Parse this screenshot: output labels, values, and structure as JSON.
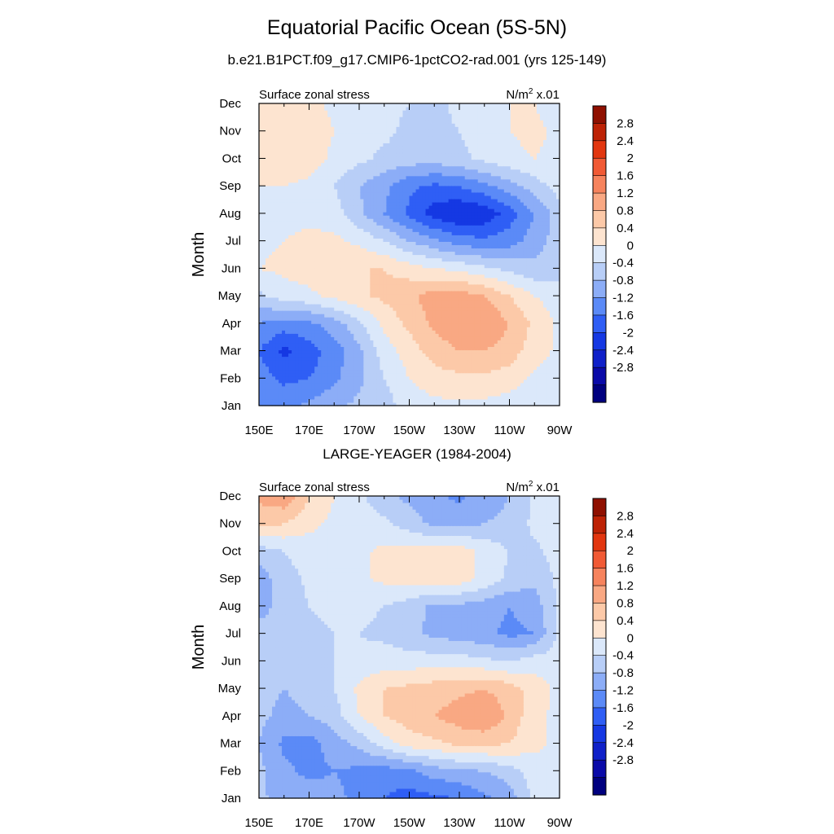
{
  "header": {
    "title": "Equatorial Pacific Ocean (5S-5N)",
    "subtitle": "b.e21.B1PCT.f09_g17.CMIP6-1pctCO2-rad.001 (yrs 125-149)",
    "panel2_title": "LARGE-YEAGER (1984-2004)"
  },
  "colors": {
    "levels": [
      "#00007f",
      "#0a0aa8",
      "#0f20c9",
      "#1538e3",
      "#2f5ef5",
      "#5b8af7",
      "#8cadf7",
      "#b8cef7",
      "#dbe8fa",
      "#fde4d0",
      "#fcc9a8",
      "#f9a883",
      "#f6835d",
      "#f15a35",
      "#e2360f",
      "#bd2205",
      "#8f1000"
    ],
    "thresholds": [
      -2.8,
      -2.4,
      -2.0,
      -1.6,
      -1.2,
      -0.8,
      -0.4,
      0,
      0.4,
      0.8,
      1.2,
      1.6,
      2.0,
      2.4,
      2.8
    ]
  },
  "chart_data": [
    {
      "type": "heatmap",
      "title": "",
      "left_string": "Surface zonal stress",
      "right_string_base": "N/m",
      "right_string_exp": "2",
      "right_string_tail": " x.01",
      "xlabel": "",
      "ylabel": "Month",
      "x_ticks": [
        "150E",
        "170E",
        "170W",
        "150W",
        "130W",
        "110W",
        "90W"
      ],
      "x_values": [
        150,
        170,
        190,
        210,
        230,
        250,
        270
      ],
      "xlim": [
        150,
        270
      ],
      "y_ticks": [
        "Jan",
        "Feb",
        "Mar",
        "Apr",
        "May",
        "Jun",
        "Jul",
        "Aug",
        "Sep",
        "Oct",
        "Nov",
        "Dec"
      ],
      "ylim": [
        1,
        12
      ],
      "colorbar_labels": [
        "2.8",
        "2.4",
        "2",
        "1.6",
        "1.2",
        "0.8",
        "0.4",
        "0",
        "-0.4",
        "-0.8",
        "-1.2",
        "-1.6",
        "-2",
        "-2.4",
        "-2.8"
      ],
      "field": {
        "x": [
          150,
          160,
          170,
          180,
          190,
          200,
          210,
          220,
          230,
          240,
          250,
          260,
          270
        ],
        "y": [
          1,
          2,
          3,
          4,
          5,
          6,
          7,
          8,
          9,
          10,
          11,
          12
        ],
        "z": [
          [
            -0.9,
            -0.9,
            -0.7,
            -0.5,
            -0.3,
            -0.2,
            0.2,
            0.3,
            0.3,
            0.3,
            0.2,
            0.1,
            0.1
          ],
          [
            -1.0,
            -1.3,
            -1.2,
            -0.9,
            -0.5,
            0.0,
            0.4,
            0.6,
            0.7,
            0.7,
            0.6,
            0.3,
            0.2
          ],
          [
            -1.2,
            -1.7,
            -1.4,
            -1.0,
            -0.5,
            0.2,
            0.6,
            1.0,
            1.2,
            1.2,
            1.0,
            0.6,
            0.3
          ],
          [
            -0.8,
            -1.0,
            -0.9,
            -0.6,
            -0.1,
            0.5,
            0.9,
            1.3,
            1.5,
            1.6,
            1.2,
            0.7,
            0.3
          ],
          [
            -0.1,
            0.2,
            0.3,
            0.5,
            0.7,
            0.9,
            1.1,
            1.4,
            1.4,
            1.2,
            0.8,
            0.4,
            0.2
          ],
          [
            0.4,
            0.5,
            0.6,
            0.8,
            0.8,
            0.8,
            0.6,
            0.4,
            0.3,
            0.1,
            -0.1,
            -0.3,
            -0.2
          ],
          [
            0.3,
            0.4,
            0.5,
            0.5,
            0.3,
            0.0,
            -0.4,
            -0.7,
            -1.0,
            -1.1,
            -1.0,
            -0.6,
            -0.2
          ],
          [
            0.2,
            0.3,
            0.3,
            0.2,
            -0.3,
            -0.8,
            -1.3,
            -1.8,
            -2.0,
            -1.9,
            -1.4,
            -0.8,
            -0.2
          ],
          [
            0.4,
            0.4,
            0.3,
            0.0,
            -0.4,
            -0.7,
            -1.1,
            -1.3,
            -1.2,
            -0.9,
            -0.6,
            -0.2,
            0.2
          ],
          [
            0.6,
            0.7,
            0.6,
            0.3,
            0.1,
            -0.1,
            -0.2,
            -0.2,
            -0.1,
            0.1,
            0.3,
            0.4,
            0.3
          ],
          [
            0.7,
            0.8,
            0.7,
            0.4,
            0.2,
            0.1,
            -0.1,
            -0.1,
            0.0,
            0.2,
            0.4,
            0.5,
            0.3
          ],
          [
            0.5,
            0.6,
            0.5,
            0.3,
            0.2,
            0.1,
            0.0,
            -0.1,
            0.1,
            0.3,
            0.4,
            0.4,
            0.2
          ]
        ]
      }
    },
    {
      "type": "heatmap",
      "title": "LARGE-YEAGER (1984-2004)",
      "left_string": "Surface zonal stress",
      "right_string_base": "N/m",
      "right_string_exp": "2",
      "right_string_tail": " x.01",
      "xlabel": "",
      "ylabel": "Month",
      "x_ticks": [
        "150E",
        "170E",
        "170W",
        "150W",
        "130W",
        "110W",
        "90W"
      ],
      "x_values": [
        150,
        170,
        190,
        210,
        230,
        250,
        270
      ],
      "xlim": [
        150,
        270
      ],
      "y_ticks": [
        "Jan",
        "Feb",
        "Mar",
        "Apr",
        "May",
        "Jun",
        "Jul",
        "Aug",
        "Sep",
        "Oct",
        "Nov",
        "Dec"
      ],
      "ylim": [
        1,
        12
      ],
      "colorbar_labels": [
        "2.8",
        "2.4",
        "2",
        "1.6",
        "1.2",
        "0.8",
        "0.4",
        "0",
        "-0.4",
        "-0.8",
        "-1.2",
        "-1.6",
        "-2",
        "-2.4",
        "-2.8"
      ],
      "field": {
        "x": [
          150,
          160,
          170,
          180,
          190,
          200,
          210,
          220,
          230,
          240,
          250,
          260,
          270
        ],
        "y": [
          1,
          2,
          3,
          4,
          5,
          6,
          7,
          8,
          9,
          10,
          11,
          12
        ],
        "z": [
          [
            -0.3,
            -0.6,
            -0.6,
            -0.7,
            -0.9,
            -1.2,
            -1.4,
            -1.3,
            -1.2,
            -0.9,
            -0.6,
            0.1,
            0.2
          ],
          [
            -0.3,
            -0.7,
            -0.9,
            -0.8,
            -0.9,
            -1.0,
            -0.9,
            -0.6,
            -0.5,
            -0.4,
            -0.2,
            0.2,
            0.3
          ],
          [
            -0.4,
            -0.9,
            -1.0,
            -0.6,
            -0.3,
            0.2,
            0.6,
            0.7,
            0.9,
            0.9,
            0.8,
            0.5,
            0.3
          ],
          [
            -0.3,
            -0.5,
            -0.4,
            -0.2,
            0.4,
            0.8,
            1.0,
            1.2,
            1.4,
            1.6,
            1.1,
            0.5,
            0.3
          ],
          [
            -0.3,
            -0.4,
            -0.3,
            0.0,
            0.5,
            0.8,
            0.9,
            1.0,
            1.1,
            1.2,
            1.0,
            0.6,
            0.3
          ],
          [
            -0.2,
            -0.3,
            -0.2,
            0.0,
            0.1,
            0.2,
            0.2,
            0.2,
            0.2,
            0.1,
            0.0,
            0.2,
            0.2
          ],
          [
            -0.3,
            -0.3,
            -0.1,
            0.0,
            0.0,
            -0.1,
            -0.3,
            -0.5,
            -0.6,
            -0.7,
            -0.9,
            -0.8,
            0.1
          ],
          [
            -0.5,
            -0.3,
            0.0,
            0.1,
            0.1,
            0.0,
            -0.2,
            -0.5,
            -0.5,
            -0.6,
            -0.8,
            -0.6,
            0.1
          ],
          [
            -0.6,
            -0.2,
            0.1,
            0.2,
            0.3,
            0.5,
            0.6,
            0.6,
            0.6,
            0.3,
            -0.1,
            -0.3,
            0.1
          ],
          [
            -0.2,
            0.0,
            0.2,
            0.2,
            0.3,
            0.5,
            0.6,
            0.6,
            0.6,
            0.3,
            0.0,
            -0.1,
            0.2
          ],
          [
            0.9,
            0.8,
            0.5,
            0.3,
            0.2,
            0.1,
            -0.2,
            -0.5,
            -0.5,
            -0.4,
            -0.3,
            0.1,
            0.3
          ],
          [
            1.3,
            1.5,
            0.8,
            0.4,
            0.1,
            -0.3,
            -0.5,
            -0.7,
            -0.9,
            -0.6,
            -0.4,
            0.1,
            0.2
          ]
        ]
      }
    }
  ]
}
